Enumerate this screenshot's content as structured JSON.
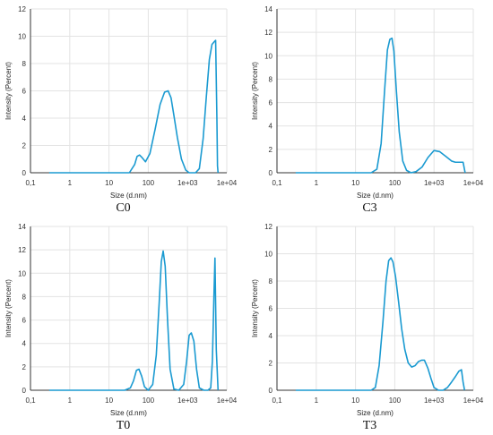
{
  "chart_data": [
    {
      "type": "line",
      "caption": "C0",
      "xlabel": "Size (d.nm)",
      "ylabel": "Intensity (Percent)",
      "xscale": "log",
      "xlim": [
        0.1,
        10000
      ],
      "ylim": [
        0,
        12
      ],
      "yticks": [
        0,
        2,
        4,
        6,
        8,
        10,
        12
      ],
      "xticks": [
        0.1,
        1,
        10,
        100,
        1000,
        10000
      ],
      "xticklabels": [
        "0,1",
        "1",
        "10",
        "100",
        "1e+03",
        "1e+04"
      ],
      "grid": true,
      "color": "#1a9ad1",
      "series": [
        {
          "x": [
            0.3,
            10,
            33,
            45,
            52,
            60,
            70,
            85,
            110,
            150,
            200,
            260,
            320,
            380,
            450,
            550,
            700,
            900,
            1100,
            1300,
            1600,
            2000,
            2500,
            3000,
            3600,
            4200,
            4800,
            5200,
            5600,
            5800,
            6000
          ],
          "y": [
            0,
            0,
            0,
            0.6,
            1.2,
            1.3,
            1.1,
            0.8,
            1.4,
            3.2,
            5.0,
            5.9,
            6.0,
            5.5,
            4.2,
            2.6,
            1.0,
            0.2,
            0,
            0,
            0,
            0.3,
            2.5,
            5.5,
            8.3,
            9.4,
            9.6,
            9.7,
            4.0,
            0.5,
            0
          ]
        }
      ]
    },
    {
      "type": "line",
      "caption": "C3",
      "xlabel": "Size (d.nm)",
      "ylabel": "Intensity (Percent)",
      "xscale": "log",
      "xlim": [
        0.1,
        10000
      ],
      "ylim": [
        0,
        14
      ],
      "yticks": [
        0,
        2,
        4,
        6,
        8,
        10,
        12,
        14
      ],
      "xticks": [
        0.1,
        1,
        10,
        100,
        1000,
        10000
      ],
      "xticklabels": [
        "0,1",
        "1",
        "10",
        "100",
        "1e+03",
        "1e+04"
      ],
      "grid": true,
      "color": "#1a9ad1",
      "series": [
        {
          "x": [
            0.3,
            25,
            35,
            45,
            55,
            65,
            75,
            85,
            95,
            110,
            130,
            160,
            200,
            260,
            350,
            500,
            700,
            1000,
            1400,
            2000,
            2800,
            3500,
            4500,
            5500,
            6200
          ],
          "y": [
            0,
            0,
            0.3,
            2.5,
            7.0,
            10.5,
            11.4,
            11.5,
            10.4,
            7.0,
            3.5,
            1.0,
            0.2,
            0,
            0.1,
            0.5,
            1.3,
            1.9,
            1.8,
            1.4,
            1.0,
            0.9,
            0.9,
            0.9,
            0
          ]
        }
      ]
    },
    {
      "type": "line",
      "caption": "T0",
      "xlabel": "Size (d.nm)",
      "ylabel": "Intensity (Percent)",
      "xscale": "log",
      "xlim": [
        0.1,
        10000
      ],
      "ylim": [
        0,
        14
      ],
      "yticks": [
        0,
        2,
        4,
        6,
        8,
        10,
        12,
        14
      ],
      "xticks": [
        0.1,
        1,
        10,
        100,
        1000,
        10000
      ],
      "xticklabels": [
        "0,1",
        "1",
        "10",
        "100",
        "1e+03",
        "1e+04"
      ],
      "grid": true,
      "color": "#1a9ad1",
      "series": [
        {
          "x": [
            0.3,
            25,
            35,
            42,
            50,
            58,
            68,
            80,
            100,
            130,
            160,
            190,
            215,
            240,
            270,
            310,
            360,
            450,
            600,
            800,
            950,
            1100,
            1250,
            1450,
            1700,
            2000,
            2600,
            3300,
            3900,
            4300,
            4700,
            5000,
            5400,
            6000
          ],
          "y": [
            0,
            0,
            0.2,
            0.8,
            1.7,
            1.8,
            1.2,
            0.3,
            0,
            0.5,
            3.0,
            7.5,
            11.0,
            11.9,
            10.6,
            6.0,
            1.8,
            0.1,
            0,
            0.5,
            2.5,
            4.7,
            4.9,
            4.2,
            1.8,
            0.2,
            0,
            0,
            0.2,
            2.5,
            8.0,
            11.3,
            3.5,
            0
          ]
        }
      ]
    },
    {
      "type": "line",
      "caption": "T3",
      "xlabel": "Size (d.nm)",
      "ylabel": "Intensity (Percent)",
      "xscale": "log",
      "xlim": [
        0.1,
        10000
      ],
      "ylim": [
        0,
        12
      ],
      "yticks": [
        0,
        2,
        4,
        6,
        8,
        10,
        12
      ],
      "xticks": [
        0.1,
        1,
        10,
        100,
        1000,
        10000
      ],
      "xticklabels": [
        "0,1",
        "1",
        "10",
        "100",
        "1e+03",
        "1e+04"
      ],
      "grid": true,
      "color": "#1a9ad1",
      "series": [
        {
          "x": [
            0.3,
            25,
            32,
            40,
            50,
            60,
            70,
            80,
            90,
            105,
            125,
            150,
            180,
            220,
            270,
            330,
            400,
            480,
            570,
            700,
            850,
            1000,
            1300,
            1700,
            2200,
            2800,
            3500,
            4300,
            5000,
            5500,
            6000
          ],
          "y": [
            0,
            0,
            0.2,
            1.8,
            5.0,
            8.0,
            9.5,
            9.7,
            9.4,
            8.3,
            6.5,
            4.5,
            3.0,
            2.0,
            1.7,
            1.8,
            2.1,
            2.2,
            2.2,
            1.6,
            0.8,
            0.2,
            0,
            0,
            0.2,
            0.6,
            1.0,
            1.4,
            1.5,
            0.6,
            0
          ]
        }
      ]
    }
  ]
}
